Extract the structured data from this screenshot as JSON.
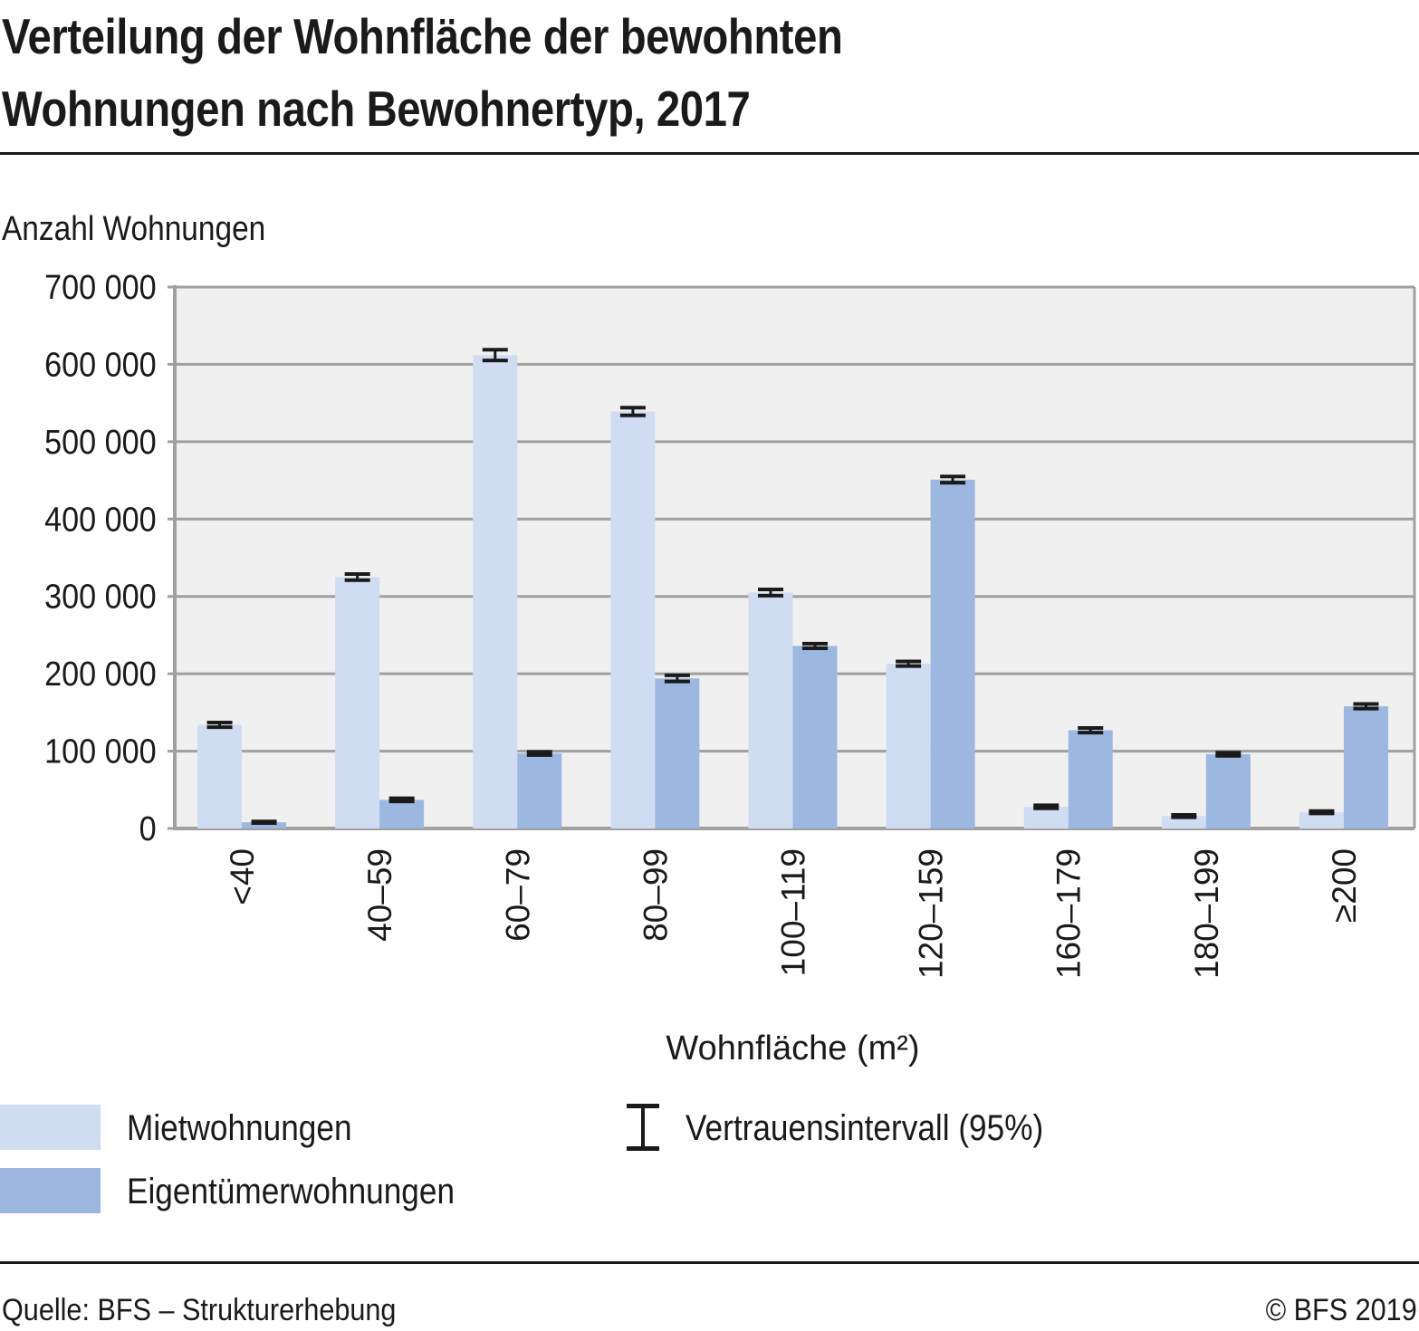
{
  "header": {
    "title_line1": "Verteilung der Wohnfläche der bewohnten",
    "title_line2": "Wohnungen nach Bewohnertyp, 2017"
  },
  "footer": {
    "source": "Quelle: BFS – Strukturerhebung",
    "copyright": "© BFS 2019"
  },
  "legend": {
    "items": [
      {
        "label": "Mietwohnungen",
        "color": "#cfdcf2",
        "icon": "swatch"
      },
      {
        "label": "Eigentümerwohnungen",
        "color": "#9cb8e0",
        "icon": "swatch"
      },
      {
        "label": "Vertrauensintervall (95%)",
        "icon": "error-bar-icon"
      }
    ]
  },
  "chart_data": {
    "type": "bar",
    "title": "Verteilung der Wohnfläche der bewohnten Wohnungen nach Bewohnertyp, 2017",
    "xlabel": "Wohnfläche (m²)",
    "ylabel": "Anzahl Wohnungen",
    "ylim": [
      0,
      700000
    ],
    "yticks": [
      0,
      100000,
      200000,
      300000,
      400000,
      500000,
      600000,
      700000
    ],
    "ytick_labels": [
      "0",
      "100 000",
      "200 000",
      "300 000",
      "400 000",
      "500 000",
      "600 000",
      "700 000"
    ],
    "grid": true,
    "legend_position": "bottom",
    "plot_background": "#f0f0f0",
    "categories": [
      "<40",
      "40–59",
      "60–79",
      "80–99",
      "100–119",
      "120–159",
      "160–179",
      "180–199",
      "≥200"
    ],
    "series": [
      {
        "name": "Mietwohnungen",
        "color": "#cfdcf2",
        "values": [
          134000,
          325000,
          612000,
          539000,
          305000,
          213000,
          28000,
          16000,
          21000
        ],
        "ci_halfwidth": [
          3000,
          4000,
          7000,
          5000,
          4000,
          3000,
          2000,
          1500,
          1500
        ]
      },
      {
        "name": "Eigentümerwohnungen",
        "color": "#9cb8e0",
        "values": [
          8000,
          37000,
          97000,
          194000,
          236000,
          451000,
          127000,
          96000,
          158000
        ],
        "ci_halfwidth": [
          1000,
          2000,
          2000,
          4000,
          3000,
          4000,
          3000,
          2000,
          3000
        ]
      }
    ],
    "error_bars": "Vertrauensintervall (95%)"
  }
}
